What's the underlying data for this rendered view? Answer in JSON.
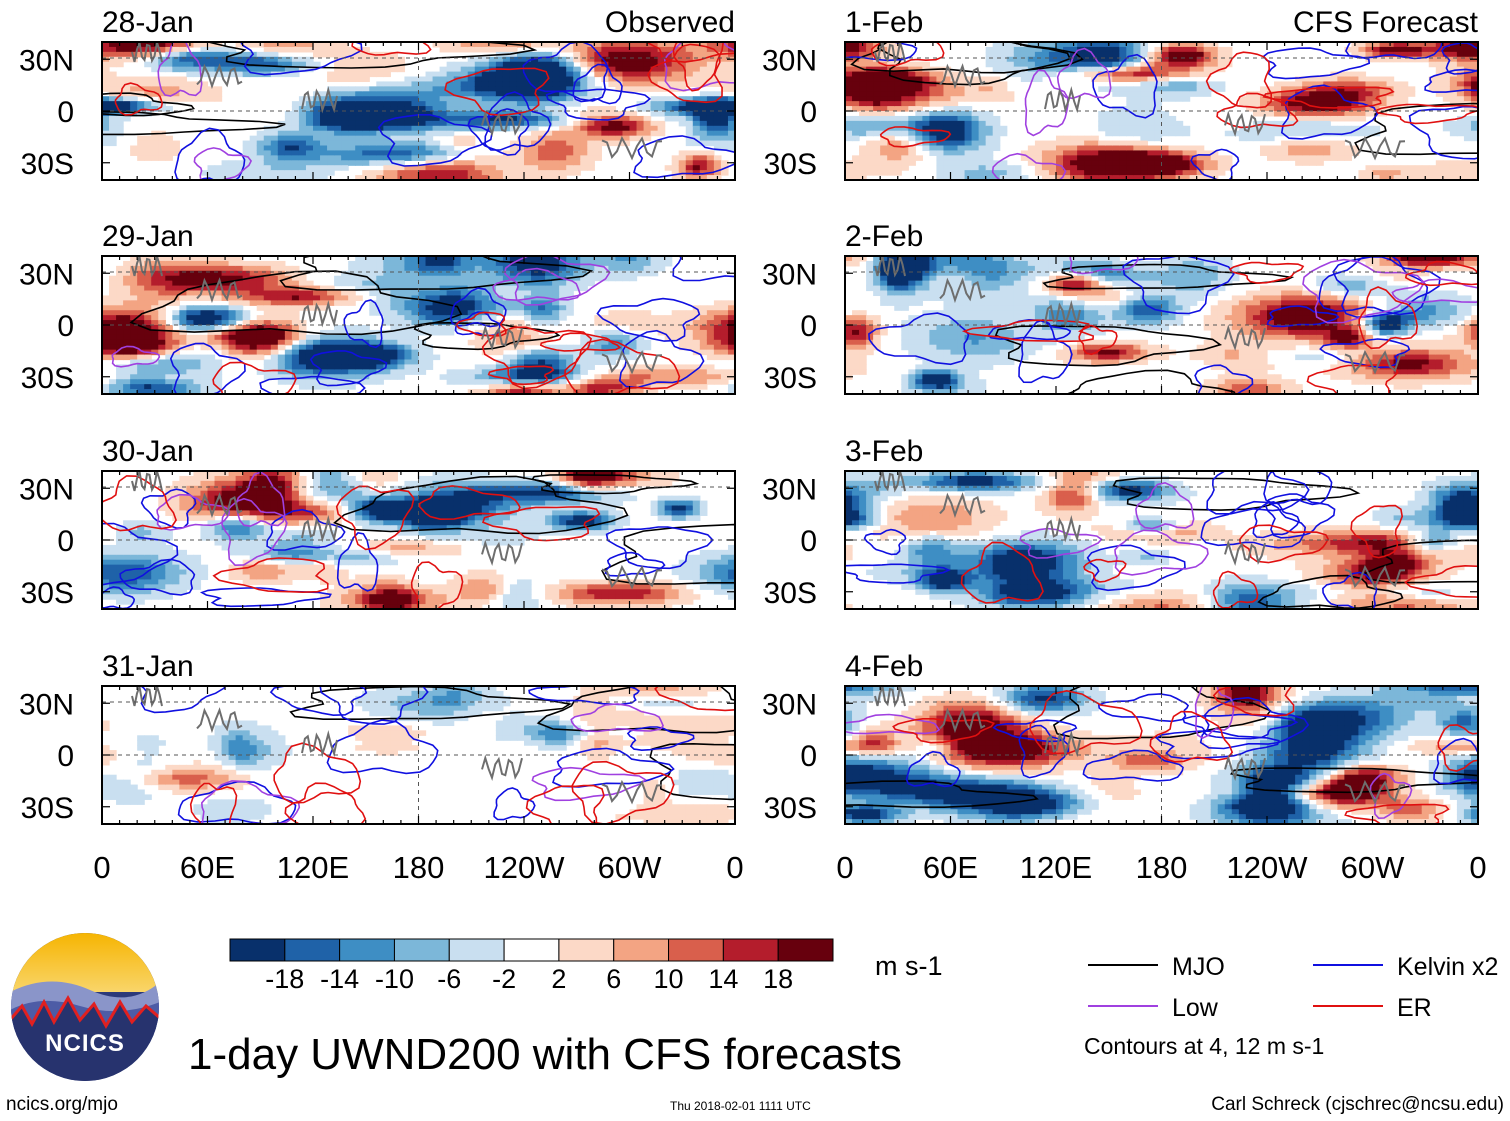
{
  "title": "1-day UWND200 with CFS forecasts",
  "footer": {
    "site": "ncics.org/mjo",
    "timestamp": "Thu 2018-02-01 1111 UTC",
    "credit": "Carl Schreck (cjschrec@ncsu.edu)",
    "logo_text": "NCICS"
  },
  "colors": {
    "mjo": "#000000",
    "kelvin": "#1010e0",
    "low": "#a040e0",
    "er": "#e01010",
    "grid": "#555555",
    "coast": "#6e6e6e"
  },
  "chart_data": {
    "type": "heatmap",
    "variable": "200-hPa zonal wind anomaly",
    "units": "m s-1",
    "x_ticks": [
      "0",
      "60E",
      "120E",
      "180",
      "120W",
      "60W",
      "0"
    ],
    "y_ticks": [
      "30N",
      "0",
      "30S"
    ],
    "xlim_deg_east": [
      0,
      360
    ],
    "ylim_deg": [
      -40,
      40
    ],
    "colorbar": {
      "levels": [
        -18,
        -14,
        -10,
        -6,
        -2,
        2,
        6,
        10,
        14,
        18
      ],
      "labels": [
        "-18",
        "-14",
        "-10",
        "-6",
        "-2",
        "2",
        "6",
        "10",
        "14",
        "18"
      ],
      "colors": [
        "#08306b",
        "#1f62a8",
        "#3e8ec4",
        "#7cb7d9",
        "#c9dff0",
        "#ffffff",
        "#fcd9c7",
        "#f3a483",
        "#d95f4c",
        "#b41d2c",
        "#67000d"
      ]
    },
    "panels": [
      {
        "date": "28-Jan",
        "label": "Observed",
        "source": "observed"
      },
      {
        "date": "29-Jan",
        "label": "",
        "source": "observed"
      },
      {
        "date": "30-Jan",
        "label": "",
        "source": "observed"
      },
      {
        "date": "31-Jan",
        "label": "",
        "source": "observed"
      },
      {
        "date": "1-Feb",
        "label": "CFS Forecast",
        "source": "forecast"
      },
      {
        "date": "2-Feb",
        "label": "",
        "source": "forecast"
      },
      {
        "date": "3-Feb",
        "label": "",
        "source": "forecast"
      },
      {
        "date": "4-Feb",
        "label": "",
        "source": "forecast"
      }
    ],
    "legend": {
      "entries": [
        {
          "name": "MJO",
          "color_key": "mjo"
        },
        {
          "name": "Kelvin x2",
          "color_key": "kelvin"
        },
        {
          "name": "Low",
          "color_key": "low"
        },
        {
          "name": "ER",
          "color_key": "er"
        }
      ],
      "note": "Contours at 4, 12 m s-1"
    }
  }
}
